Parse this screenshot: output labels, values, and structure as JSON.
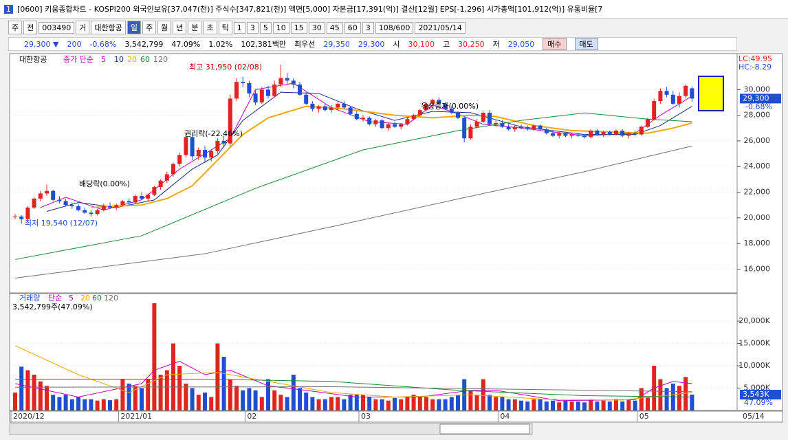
{
  "window": {
    "icon": "1",
    "title": "[0600] 키움종합차트 - KOSPI200 외국인보유[37,047(천)] 주식수[347,821(천)] 액면[5,000] 자본금[17,391(억)] 결산[12월] EPS[-1,296] 시가총액[101,912(억)] 유통비율[7"
  },
  "toolbar": [
    "주",
    "전",
    "003490",
    "거",
    "대한항공",
    "일",
    "주",
    "월",
    "년",
    "분",
    "초",
    "틱",
    "1",
    "3",
    "5",
    "10",
    "15",
    "30",
    "45",
    "60",
    "3",
    "108/600",
    "2021/05/14"
  ],
  "info_bar": [
    "29,300 ▼",
    "200",
    "-0.68%",
    "3,542,799",
    "47.09%",
    "1.02%",
    "102,381백만",
    "최우선",
    "29,350",
    "29,300",
    "시",
    "30,100",
    "고",
    "30,250",
    "저",
    "29,050",
    "매수",
    "매도"
  ],
  "chart_data": [
    {
      "type": "candlestick",
      "stock": "대한항공",
      "legend_label": "종가 단순",
      "up_color": "#e0241f",
      "down_color": "#1f4fd0",
      "ylim": [
        14200,
        32700
      ],
      "yticks": [
        {
          "value": 16000,
          "label": "16,000"
        },
        {
          "value": 18000,
          "label": "18,000"
        },
        {
          "value": 20000,
          "label": "20,000"
        },
        {
          "value": 22000,
          "label": "22,000"
        },
        {
          "value": 24000,
          "label": "24,000"
        },
        {
          "value": 26000,
          "label": "26,000"
        },
        {
          "value": 28000,
          "label": "28,000"
        },
        {
          "value": 30000,
          "label": "30,000"
        }
      ],
      "top_right_labels": [
        "LC:49.95",
        "HC:-8.29"
      ],
      "current_price": {
        "value": 29300,
        "label": "29,300",
        "change": "-0.68%"
      },
      "x_labels": [
        {
          "index": 0,
          "label": "2020/12"
        },
        {
          "index": 17,
          "label": "2021/01"
        },
        {
          "index": 37,
          "label": "02"
        },
        {
          "index": 55,
          "label": "03"
        },
        {
          "index": 77,
          "label": "04"
        },
        {
          "index": 99,
          "label": "05"
        }
      ],
      "x_end_label": "05/14",
      "annotations": [
        "최고 31,950 (02/08)",
        "최저 19,540 (12/07)",
        "배당락(0.00%)",
        "권리락(-22.46%)",
        "유상증자(0.00%)"
      ],
      "candles": [
        [
          20050,
          20300,
          19900,
          20100
        ],
        [
          20100,
          20200,
          19540,
          19900
        ],
        [
          19900,
          20900,
          19850,
          20800
        ],
        [
          20800,
          21600,
          20700,
          21500
        ],
        [
          21500,
          22100,
          21300,
          21900
        ],
        [
          21900,
          22600,
          21700,
          22100
        ],
        [
          22100,
          22200,
          21300,
          21400
        ],
        [
          21400,
          21700,
          21100,
          21300
        ],
        [
          21300,
          21500,
          20900,
          21000
        ],
        [
          21000,
          21200,
          20700,
          20900
        ],
        [
          20900,
          21100,
          20500,
          20600
        ],
        [
          20600,
          20800,
          20300,
          20400
        ],
        [
          20400,
          20600,
          20100,
          20300
        ],
        [
          20300,
          20700,
          20200,
          20600
        ],
        [
          20600,
          21100,
          20500,
          20900
        ],
        [
          20900,
          21200,
          20700,
          20800
        ],
        [
          20800,
          21100,
          20600,
          21000
        ],
        [
          21000,
          21400,
          20900,
          21300
        ],
        [
          21300,
          21500,
          21000,
          21200
        ],
        [
          21200,
          21800,
          21100,
          21700
        ],
        [
          21700,
          22000,
          21400,
          21500
        ],
        [
          21500,
          21900,
          21300,
          21800
        ],
        [
          21800,
          22500,
          21700,
          22400
        ],
        [
          22400,
          23000,
          22200,
          22900
        ],
        [
          22900,
          23600,
          22700,
          23400
        ],
        [
          23400,
          24300,
          23200,
          24200
        ],
        [
          24200,
          25100,
          24000,
          24900
        ],
        [
          24900,
          26600,
          24700,
          26300
        ],
        [
          26300,
          26500,
          24500,
          24800
        ],
        [
          24800,
          25500,
          24500,
          25300
        ],
        [
          25300,
          25600,
          24300,
          24700
        ],
        [
          24700,
          25300,
          24400,
          25200
        ],
        [
          25200,
          26200,
          25000,
          26000
        ],
        [
          26000,
          26400,
          25500,
          25800
        ],
        [
          25800,
          29600,
          25600,
          29300
        ],
        [
          29300,
          30900,
          29100,
          30600
        ],
        [
          30600,
          31000,
          30200,
          30500
        ],
        [
          30500,
          30700,
          29400,
          29700
        ],
        [
          29700,
          30000,
          28800,
          29000
        ],
        [
          29000,
          30200,
          28900,
          30000
        ],
        [
          30000,
          30300,
          29300,
          29500
        ],
        [
          29500,
          30700,
          29400,
          30400
        ],
        [
          30400,
          31950,
          30200,
          30900
        ],
        [
          30900,
          31300,
          30400,
          30700
        ],
        [
          30700,
          30900,
          30100,
          30400
        ],
        [
          30400,
          30600,
          29500,
          29600
        ],
        [
          29600,
          29800,
          28800,
          28900
        ],
        [
          28900,
          29100,
          28300,
          28500
        ],
        [
          28500,
          28800,
          28200,
          28700
        ],
        [
          28700,
          28900,
          28300,
          28400
        ],
        [
          28400,
          28800,
          28200,
          28600
        ],
        [
          28600,
          29000,
          28400,
          28900
        ],
        [
          28900,
          29100,
          28500,
          28600
        ],
        [
          28600,
          28700,
          28000,
          28100
        ],
        [
          28100,
          28300,
          27600,
          27700
        ],
        [
          27700,
          28000,
          27500,
          27800
        ],
        [
          27800,
          27900,
          27200,
          27300
        ],
        [
          27300,
          27700,
          27100,
          27600
        ],
        [
          27600,
          27700,
          26900,
          27000
        ],
        [
          27000,
          27400,
          26800,
          27300
        ],
        [
          27300,
          27500,
          27000,
          27100
        ],
        [
          27100,
          27400,
          26900,
          27300
        ],
        [
          27300,
          27800,
          27200,
          27700
        ],
        [
          27700,
          28100,
          27600,
          28000
        ],
        [
          28000,
          28500,
          27900,
          28400
        ],
        [
          28400,
          29000,
          28300,
          28900
        ],
        [
          28900,
          29300,
          28700,
          29200
        ],
        [
          29200,
          29400,
          28800,
          28900
        ],
        [
          28900,
          29000,
          28400,
          28500
        ],
        [
          28500,
          28700,
          28100,
          28200
        ],
        [
          28200,
          28300,
          27700,
          27800
        ],
        [
          27800,
          27900,
          25900,
          26200
        ],
        [
          26200,
          27300,
          26100,
          27100
        ],
        [
          27100,
          27700,
          27000,
          27500
        ],
        [
          27500,
          28300,
          27400,
          28200
        ],
        [
          28200,
          28400,
          27200,
          27300
        ],
        [
          27300,
          27600,
          27100,
          27400
        ],
        [
          27400,
          27600,
          27000,
          27100
        ],
        [
          27100,
          27300,
          26800,
          26900
        ],
        [
          26900,
          27200,
          26700,
          27100
        ],
        [
          27100,
          27300,
          26900,
          27000
        ],
        [
          27000,
          27200,
          26800,
          26900
        ],
        [
          26900,
          27300,
          26800,
          27200
        ],
        [
          27200,
          27300,
          26800,
          26900
        ],
        [
          26900,
          27000,
          26500,
          26600
        ],
        [
          26600,
          26800,
          26300,
          26400
        ],
        [
          26400,
          26700,
          26200,
          26600
        ],
        [
          26600,
          26700,
          26300,
          26400
        ],
        [
          26400,
          26600,
          26200,
          26500
        ],
        [
          26500,
          26600,
          26300,
          26400
        ],
        [
          26400,
          26500,
          26200,
          26300
        ],
        [
          26300,
          26900,
          26200,
          26800
        ],
        [
          26800,
          26900,
          26400,
          26500
        ],
        [
          26500,
          26800,
          26300,
          26700
        ],
        [
          26700,
          26800,
          26400,
          26500
        ],
        [
          26500,
          26900,
          26400,
          26800
        ],
        [
          26800,
          26900,
          26300,
          26400
        ],
        [
          26400,
          26700,
          26200,
          26600
        ],
        [
          26600,
          26800,
          26400,
          26500
        ],
        [
          26500,
          27200,
          26400,
          27100
        ],
        [
          27100,
          27800,
          27000,
          27700
        ],
        [
          27700,
          29300,
          27600,
          29100
        ],
        [
          29100,
          30100,
          28900,
          29900
        ],
        [
          29900,
          30200,
          29400,
          29600
        ],
        [
          29600,
          29900,
          28800,
          28900
        ],
        [
          28900,
          29800,
          28600,
          29500
        ],
        [
          29500,
          30400,
          29300,
          30300
        ],
        [
          30100,
          30250,
          29050,
          29300
        ]
      ],
      "series": [
        {
          "name": "5",
          "color": "#c000c0",
          "x": [
            4,
            8,
            14,
            20,
            26,
            30,
            34,
            38,
            44,
            50,
            56,
            62,
            66,
            70,
            74,
            80,
            90,
            98,
            102,
            107
          ],
          "values": [
            20800,
            21600,
            20600,
            21400,
            23800,
            25000,
            26200,
            30000,
            30500,
            28600,
            27500,
            27300,
            28800,
            28100,
            27300,
            27000,
            26400,
            26600,
            28000,
            29500
          ]
        },
        {
          "name": "10",
          "color": "#1a2a80",
          "x": [
            5,
            10,
            16,
            22,
            28,
            32,
            36,
            42,
            48,
            54,
            60,
            66,
            72,
            80,
            90,
            98,
            102,
            107
          ],
          "values": [
            20500,
            21200,
            20800,
            21400,
            23800,
            24900,
            27600,
            29800,
            29700,
            28500,
            27600,
            28300,
            28200,
            27100,
            26500,
            26500,
            27200,
            28700
          ]
        },
        {
          "name": "20",
          "color": "#f0a800",
          "x": [
            12,
            20,
            24,
            28,
            32,
            36,
            40,
            46,
            52,
            60,
            66,
            72,
            76,
            82,
            88,
            94,
            100,
            104,
            107
          ],
          "values": [
            20800,
            21000,
            21500,
            22500,
            24500,
            26500,
            27800,
            28700,
            28500,
            28000,
            27800,
            28000,
            27900,
            27200,
            26800,
            26700,
            26600,
            27000,
            27400
          ]
        },
        {
          "name": "60",
          "color": "#1a8a30",
          "x": [
            0,
            20,
            38,
            55,
            70,
            80,
            90,
            100,
            107
          ],
          "values": [
            16750,
            18600,
            22300,
            25300,
            26800,
            27600,
            28180,
            27700,
            27500
          ]
        },
        {
          "name": "120",
          "color": "#707070",
          "x": [
            0,
            30,
            50,
            70,
            90,
            107
          ],
          "values": [
            15300,
            17200,
            19300,
            21470,
            23600,
            25600
          ]
        }
      ]
    },
    {
      "type": "bar",
      "title": "거래량",
      "legend_label": "단순",
      "subtitle": "3,542,799주(47.09%)",
      "ylim": [
        0,
        25700
      ],
      "yticks": [
        {
          "value": 5000,
          "label": "5,000K"
        },
        {
          "value": 10000,
          "label": "10,000K"
        },
        {
          "value": 15000,
          "label": "15,000K"
        },
        {
          "value": 20000,
          "label": "20,000K"
        }
      ],
      "current": {
        "value": 3543,
        "label": "3,543K",
        "ratio": "47.09%"
      },
      "values": [
        4000,
        9800,
        9000,
        8000,
        6500,
        5500,
        3500,
        3000,
        3500,
        2500,
        3000,
        2500,
        2500,
        2200,
        2500,
        2300,
        2500,
        7000,
        6000,
        5500,
        5000,
        7000,
        24000,
        8000,
        9000,
        15000,
        10000,
        6000,
        5000,
        3500,
        4000,
        3000,
        15000,
        12000,
        7000,
        5500,
        4500,
        5000,
        4500,
        3000,
        7000,
        4500,
        3500,
        3000,
        8000,
        5000,
        4000,
        3000,
        2500,
        2500,
        3000,
        3000,
        2500,
        3500,
        3500,
        3500,
        3000,
        2500,
        2500,
        2200,
        2800,
        2500,
        3000,
        3500,
        3000,
        3000,
        2500,
        2500,
        2500,
        3000,
        3500,
        7000,
        4500,
        3500,
        7000,
        3500,
        3000,
        3000,
        2500,
        2500,
        2200,
        2000,
        2500,
        2500,
        2000,
        2200,
        1800,
        2200,
        2000,
        2000,
        1800,
        2500,
        2000,
        2200,
        2000,
        2500,
        2000,
        2500,
        2200,
        5000,
        3000,
        10000,
        7000,
        5000,
        6000,
        5500,
        7500,
        3543
      ],
      "series": [
        {
          "name": "5",
          "color": "#c000c0",
          "x": [
            0,
            10,
            20,
            22,
            26,
            30,
            34,
            40,
            46,
            54,
            64,
            72,
            76,
            86,
            98,
            101,
            104,
            107
          ],
          "values": [
            6000,
            3000,
            6000,
            9000,
            11000,
            8000,
            9000,
            5500,
            4500,
            3000,
            3000,
            4500,
            4500,
            2200,
            2400,
            5000,
            6500,
            6000
          ]
        },
        {
          "name": "20",
          "color": "#f0a800",
          "x": [
            0,
            10,
            18,
            24,
            32,
            40,
            50,
            60,
            72,
            84,
            96,
            107
          ],
          "values": [
            14500,
            8000,
            4000,
            8000,
            8500,
            6500,
            4000,
            3000,
            3500,
            2500,
            2300,
            4000
          ]
        },
        {
          "name": "60",
          "color": "#1a8a30",
          "x": [
            0,
            30,
            50,
            70,
            90,
            107
          ],
          "values": [
            7000,
            7000,
            6500,
            4500,
            3300,
            3000
          ]
        },
        {
          "name": "120",
          "color": "#707070",
          "x": [
            0,
            50,
            107
          ],
          "values": [
            5200,
            5300,
            4200
          ]
        }
      ]
    }
  ]
}
